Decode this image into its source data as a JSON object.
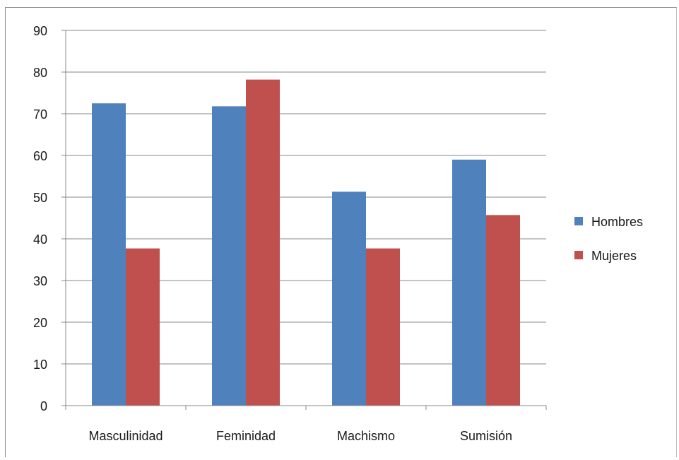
{
  "chart_data": {
    "type": "bar",
    "title": "",
    "xlabel": "",
    "ylabel": "",
    "categories": [
      "Masculinidad",
      "Feminidad",
      "Machismo",
      "Sumisión"
    ],
    "series": [
      {
        "name": "Hombres",
        "values": [
          72.5,
          71.8,
          51.3,
          59.0
        ],
        "color": "#4f81bd"
      },
      {
        "name": "Mujeres",
        "values": [
          37.7,
          78.2,
          37.7,
          45.7
        ],
        "color": "#c0504d"
      }
    ],
    "ylim": [
      0,
      90
    ],
    "yticks": [
      0,
      10,
      20,
      30,
      40,
      50,
      60,
      70,
      80,
      90
    ],
    "grid": true,
    "legend_position": "right"
  }
}
